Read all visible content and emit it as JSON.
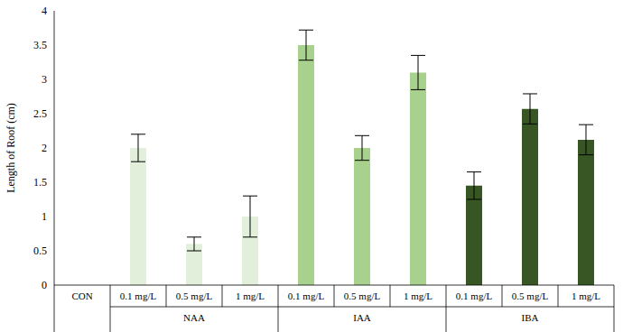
{
  "chart_data": {
    "type": "bar",
    "y_label": "Length of Roof (cm)",
    "categories": [
      "CON",
      "0.1 mg/L",
      "0.5 mg/L",
      "1 mg/L",
      "0.1 mg/L",
      "0.5 mg/L",
      "1 mg/L",
      "0.1 mg/L",
      "0.5 mg/L",
      "1 mg/L"
    ],
    "groups": [
      null,
      "NAA",
      "NAA",
      "NAA",
      "IAA",
      "IAA",
      "IAA",
      "IBA",
      "IBA",
      "IBA"
    ],
    "values": [
      null,
      2.0,
      0.6,
      1.0,
      3.5,
      2.0,
      3.1,
      1.45,
      2.57,
      2.12
    ],
    "errors": [
      null,
      0.2,
      0.1,
      0.3,
      0.22,
      0.18,
      0.25,
      0.2,
      0.22,
      0.22
    ],
    "colors": [
      "#e2efda",
      "#e2efda",
      "#e2efda",
      "#e2efda",
      "#a9d18e",
      "#a9d18e",
      "#a9d18e",
      "#375623",
      "#375623",
      "#375623"
    ],
    "ylim": [
      0,
      4
    ],
    "yticks": [
      0,
      0.5,
      1,
      1.5,
      2,
      2.5,
      3,
      3.5,
      4
    ],
    "grid": false
  }
}
